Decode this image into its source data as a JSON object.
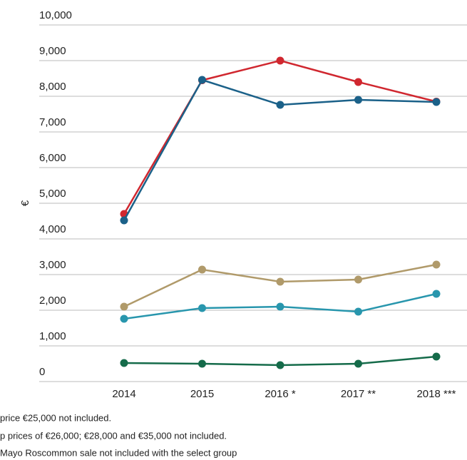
{
  "chart_data": {
    "type": "line",
    "ylabel": "€",
    "categories": [
      "2014",
      "2015",
      "2016 *",
      "2017 **",
      "2018 ***"
    ],
    "series": [
      {
        "color": "#d0272f",
        "values": [
          4700,
          8450,
          9000,
          8400,
          7850
        ]
      },
      {
        "color": "#1b6189",
        "values": [
          4520,
          8460,
          7760,
          7900,
          7840
        ]
      },
      {
        "color": "#b09a6a",
        "values": [
          2100,
          3140,
          2800,
          2860,
          3280
        ]
      },
      {
        "color": "#2896ad",
        "values": [
          1760,
          2060,
          2100,
          1960,
          2460
        ]
      },
      {
        "color": "#156b4a",
        "values": [
          520,
          500,
          460,
          500,
          700
        ]
      }
    ],
    "ylim": [
      0,
      10000
    ],
    "yticks": [
      0,
      {
        "value": 1000,
        "label": "1,000"
      },
      {
        "value": 2000,
        "label": "2,000"
      },
      {
        "value": 3000,
        "label": "3,000"
      },
      {
        "value": 4000,
        "label": "4,000"
      },
      {
        "value": 5000,
        "label": "5,000"
      },
      {
        "value": 6000,
        "label": "6,000"
      },
      {
        "value": 7000,
        "label": "7,000"
      },
      {
        "value": 8000,
        "label": "8,000"
      },
      {
        "value": 9000,
        "label": "9,000"
      },
      {
        "value": 10000,
        "label": "10,000"
      }
    ],
    "grid": true,
    "notes": [
      "price €25,000 not included.",
      "p prices of €26,000; €28,000 and €35,000 not included.",
      "Mayo Roscommon sale not included with the select group"
    ]
  }
}
